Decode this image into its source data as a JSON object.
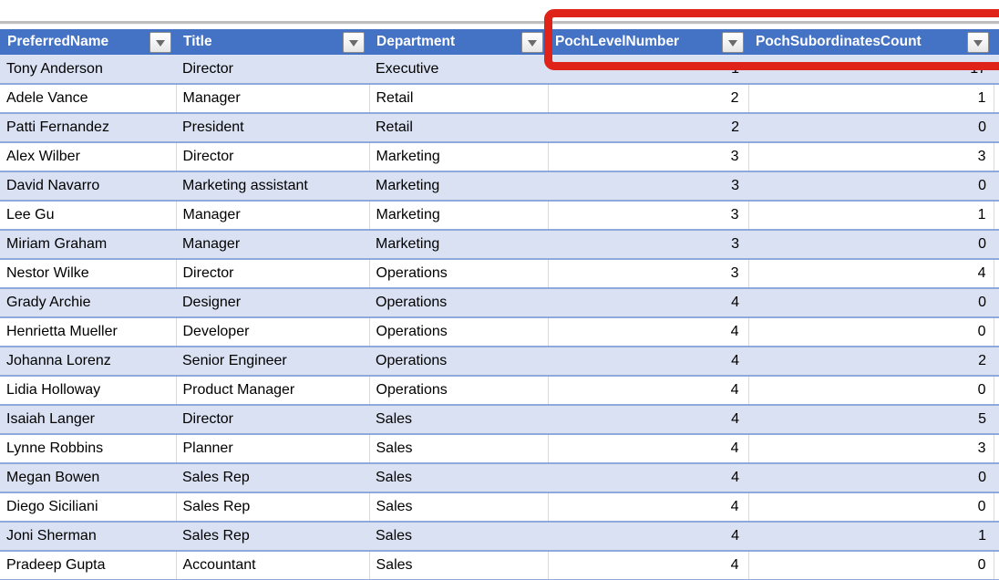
{
  "app": {
    "context": "spreadsheet table view"
  },
  "colors": {
    "header_bg": "#4472C4",
    "header_text": "#FFFFFF",
    "band_row_bg": "#D9E1F2",
    "plain_row_bg": "#FFFFFF",
    "row_border": "#8EA9DB",
    "column_border": "#D9D9D9",
    "top_rule": "#BFBFBF",
    "annotation_red": "#E02318",
    "cell_text": "#000000"
  },
  "table": {
    "columns": [
      {
        "label": "PreferredName",
        "align": "left"
      },
      {
        "label": "Title",
        "align": "left"
      },
      {
        "label": "Department",
        "align": "left"
      },
      {
        "label": "PochLevelNumber",
        "align": "right"
      },
      {
        "label": "PochSubordinatesCount",
        "align": "right"
      }
    ],
    "filter_icon": "chevron-down",
    "rows": [
      [
        "Tony Anderson",
        "Director",
        "Executive",
        "1",
        "17"
      ],
      [
        "Adele Vance",
        "Manager",
        "Retail",
        "2",
        "1"
      ],
      [
        "Patti Fernandez",
        "President",
        "Retail",
        "2",
        "0"
      ],
      [
        "Alex Wilber",
        "Director",
        "Marketing",
        "3",
        "3"
      ],
      [
        "David Navarro",
        "Marketing assistant",
        "Marketing",
        "3",
        "0"
      ],
      [
        "Lee Gu",
        "Manager",
        "Marketing",
        "3",
        "1"
      ],
      [
        "Miriam Graham",
        "Manager",
        "Marketing",
        "3",
        "0"
      ],
      [
        "Nestor Wilke",
        "Director",
        "Operations",
        "3",
        "4"
      ],
      [
        "Grady Archie",
        "Designer",
        "Operations",
        "4",
        "0"
      ],
      [
        "Henrietta Mueller",
        "Developer",
        "Operations",
        "4",
        "0"
      ],
      [
        "Johanna Lorenz",
        "Senior Engineer",
        "Operations",
        "4",
        "2"
      ],
      [
        "Lidia Holloway",
        "Product Manager",
        "Operations",
        "4",
        "0"
      ],
      [
        "Isaiah Langer",
        "Director",
        "Sales",
        "4",
        "5"
      ],
      [
        "Lynne Robbins",
        "Planner",
        "Sales",
        "4",
        "3"
      ],
      [
        "Megan Bowen",
        "Sales Rep",
        "Sales",
        "4",
        "0"
      ],
      [
        "Diego Siciliani",
        "Sales Rep",
        "Sales",
        "4",
        "0"
      ],
      [
        "Joni Sherman",
        "Sales Rep",
        "Sales",
        "4",
        "1"
      ],
      [
        "Pradeep Gupta",
        "Accountant",
        "Sales",
        "4",
        "0"
      ]
    ]
  },
  "annotation": {
    "shape": "red-rectangle",
    "color": "#E02318",
    "highlighted_columns": [
      "PochLevelNumber",
      "PochSubordinatesCount"
    ]
  }
}
